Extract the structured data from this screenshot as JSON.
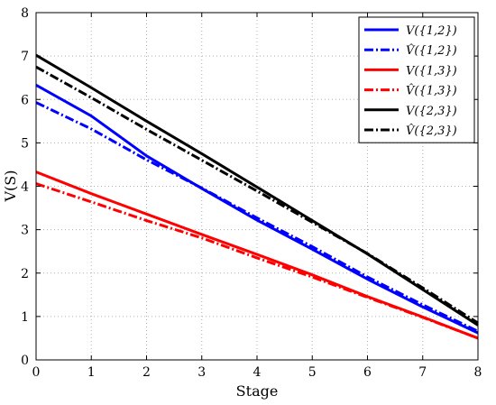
{
  "chart_data": {
    "type": "line",
    "title": "",
    "xlabel": "Stage",
    "ylabel": "V(S)",
    "xlim": [
      0,
      8
    ],
    "ylim": [
      0,
      8
    ],
    "xticks": [
      "0",
      "1",
      "2",
      "3",
      "4",
      "5",
      "6",
      "7",
      "8"
    ],
    "yticks": [
      "0",
      "1",
      "2",
      "3",
      "4",
      "5",
      "6",
      "7",
      "8"
    ],
    "grid": true,
    "legend_position": "top-right",
    "series": [
      {
        "name": "V({1,2})",
        "color": "#0000ff",
        "style": "solid",
        "x": [
          0,
          1,
          2,
          3,
          4,
          5,
          6,
          7,
          8
        ],
        "y": [
          6.33,
          5.62,
          4.7,
          3.95,
          3.22,
          2.55,
          1.86,
          1.22,
          0.62
        ]
      },
      {
        "name": "V̂({1,2})",
        "color": "#0000ff",
        "style": "dashdot",
        "x": [
          0,
          1,
          2,
          3,
          4,
          5,
          6,
          7,
          8
        ],
        "y": [
          5.93,
          5.32,
          4.61,
          3.96,
          3.27,
          2.61,
          1.91,
          1.27,
          0.66
        ]
      },
      {
        "name": "V({1,3})",
        "color": "#ff0000",
        "style": "solid",
        "x": [
          0,
          1,
          2,
          3,
          4,
          5,
          6,
          7,
          8
        ],
        "y": [
          4.33,
          3.83,
          3.36,
          2.89,
          2.43,
          1.96,
          1.46,
          0.99,
          0.5
        ]
      },
      {
        "name": "V̂({1,3})",
        "color": "#ff0000",
        "style": "dashdot",
        "x": [
          0,
          1,
          2,
          3,
          4,
          5,
          6,
          7,
          8
        ],
        "y": [
          4.06,
          3.64,
          3.21,
          2.81,
          2.35,
          1.91,
          1.44,
          0.98,
          0.5
        ]
      },
      {
        "name": "V({2,3})",
        "color": "#000000",
        "style": "solid",
        "x": [
          0,
          1,
          2,
          3,
          4,
          5,
          6,
          7,
          8
        ],
        "y": [
          7.02,
          6.27,
          5.5,
          4.75,
          3.98,
          3.21,
          2.44,
          1.62,
          0.8
        ]
      },
      {
        "name": "V̂({2,3})",
        "color": "#000000",
        "style": "dashdot",
        "x": [
          0,
          1,
          2,
          3,
          4,
          5,
          6,
          7,
          8
        ],
        "y": [
          6.75,
          6.04,
          5.31,
          4.6,
          3.89,
          3.17,
          2.45,
          1.66,
          0.85
        ]
      }
    ]
  }
}
